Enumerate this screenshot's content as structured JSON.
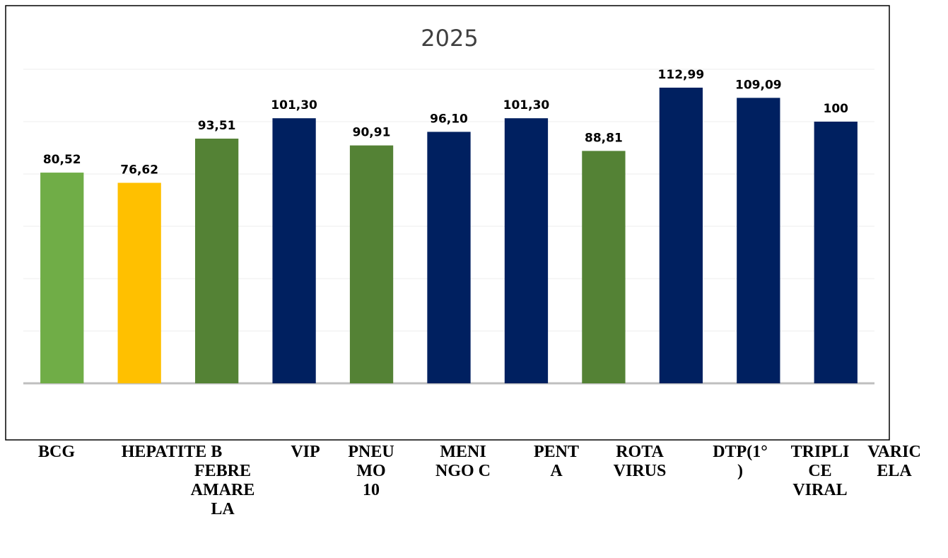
{
  "chart_data": {
    "type": "bar",
    "title": "2025",
    "categories": [
      "BCG",
      "HEPATITE B",
      "FEBRE AMARELA",
      "VIP",
      "PNEUMO 10",
      "MENINGO C",
      "PENTA",
      "ROTA VIRUS",
      "DTP(1°)",
      "TRIPLICE VIRAL",
      "VARICELA"
    ],
    "values": [
      80.52,
      76.62,
      93.51,
      101.3,
      90.91,
      96.1,
      101.3,
      88.81,
      112.99,
      109.09,
      100
    ],
    "value_labels": [
      "80,52",
      "76,62",
      "93,51",
      "101,30",
      "90,91",
      "96,10",
      "101,30",
      "88,81",
      "112,99",
      "109,09",
      "100"
    ],
    "colors": [
      "#70ad47",
      "#ffc000",
      "#548235",
      "#002060",
      "#548235",
      "#002060",
      "#002060",
      "#548235",
      "#002060",
      "#002060",
      "#002060"
    ],
    "ylim": [
      0,
      120
    ],
    "yticks": [
      0,
      20,
      40,
      60,
      80,
      100,
      120
    ],
    "grid": true
  }
}
